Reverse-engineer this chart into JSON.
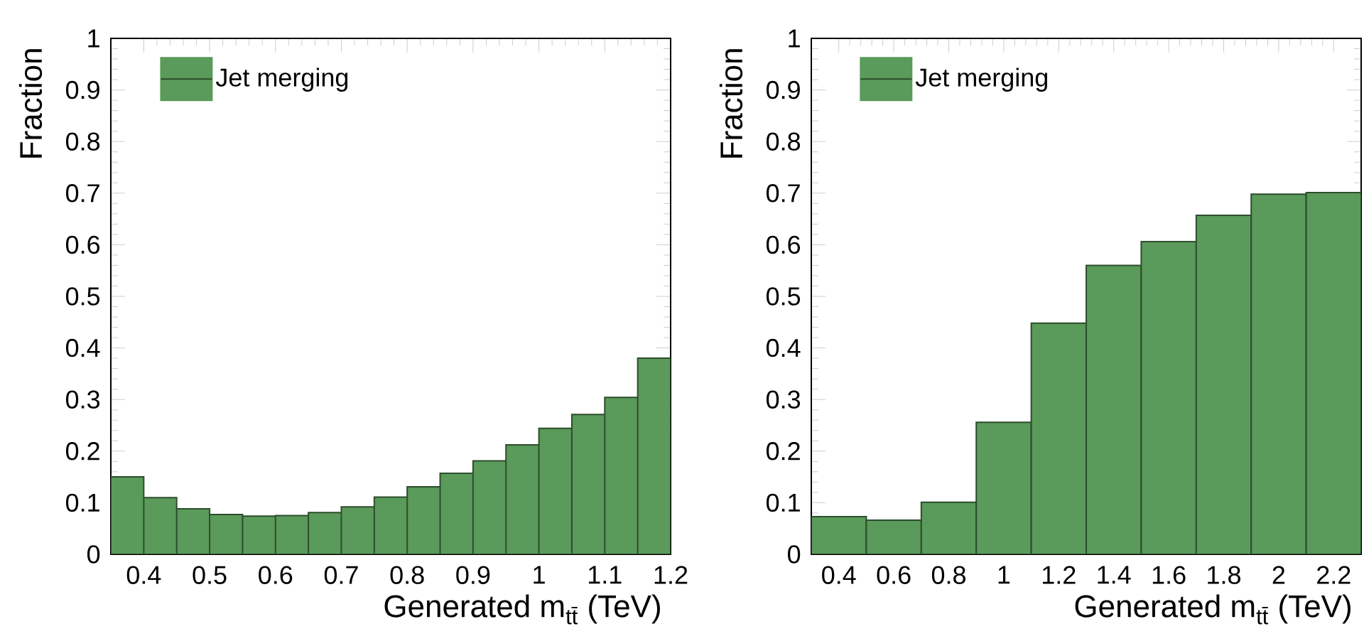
{
  "chart_data": [
    {
      "type": "histogram",
      "xlabel": "Generated m$_{tt̄}$ (TeV)",
      "ylabel": "Fraction",
      "bins": [
        0.35,
        0.4,
        0.45,
        0.5,
        0.55,
        0.6,
        0.65,
        0.7,
        0.75,
        0.8,
        0.85,
        0.9,
        0.95,
        1.0,
        1.05,
        1.1,
        1.15,
        1.2
      ],
      "series": [
        {
          "name": "Jet merging",
          "color": "#5a9a5a",
          "values": [
            0.15,
            0.11,
            0.088,
            0.077,
            0.074,
            0.075,
            0.081,
            0.092,
            0.111,
            0.131,
            0.157,
            0.181,
            0.212,
            0.244,
            0.271,
            0.304,
            0.38
          ]
        }
      ],
      "xlim": [
        0.35,
        1.2
      ],
      "ylim": [
        0,
        1
      ],
      "xticks": [
        0.4,
        0.5,
        0.6,
        0.7,
        0.8,
        0.9,
        1,
        1.1,
        1.2
      ],
      "yticks": [
        0,
        0.1,
        0.2,
        0.3,
        0.4,
        0.5,
        0.6,
        0.7,
        0.8,
        0.9,
        1
      ],
      "legend": "top left"
    },
    {
      "type": "histogram",
      "xlabel": "Generated m$_{tt̄}$ (TeV)",
      "ylabel": "Fraction",
      "bins": [
        0.3,
        0.5,
        0.7,
        0.9,
        1.1,
        1.3,
        1.5,
        1.7,
        1.9,
        2.1,
        2.3
      ],
      "series": [
        {
          "name": "Jet merging",
          "color": "#5a9a5a",
          "values": [
            0.073,
            0.066,
            0.101,
            0.256,
            0.448,
            0.56,
            0.606,
            0.657,
            0.698,
            0.701
          ]
        }
      ],
      "xlim": [
        0.3,
        2.3
      ],
      "ylim": [
        0,
        1
      ],
      "xticks": [
        0.4,
        0.6,
        0.8,
        1,
        1.2,
        1.4,
        1.6,
        1.8,
        2,
        2.2
      ],
      "yticks": [
        0,
        0.1,
        0.2,
        0.3,
        0.4,
        0.5,
        0.6,
        0.7,
        0.8,
        0.9,
        1
      ],
      "legend": "top left"
    }
  ]
}
